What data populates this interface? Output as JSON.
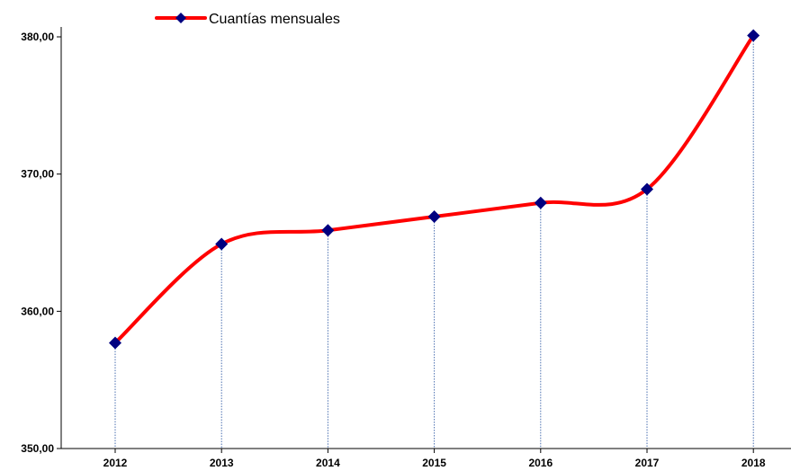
{
  "chart_data": {
    "type": "line",
    "x": [
      "2012",
      "2013",
      "2014",
      "2015",
      "2016",
      "2017",
      "2018"
    ],
    "series": [
      {
        "name": "Cuantías mensuales",
        "values": [
          357.7,
          364.9,
          365.9,
          366.9,
          367.9,
          368.9,
          380.1
        ]
      }
    ],
    "yticks": [
      "350,00",
      "360,00",
      "370,00",
      "380,00"
    ],
    "ylim": [
      350,
      381.5
    ],
    "grid": false,
    "drop_lines": true,
    "smooth": true,
    "legend": "top-left",
    "line_color": "#ff0000",
    "marker_color": "#000080",
    "marker": "diamond",
    "drop_line_color": "#4a6fb0",
    "axis_color": "#000000"
  }
}
